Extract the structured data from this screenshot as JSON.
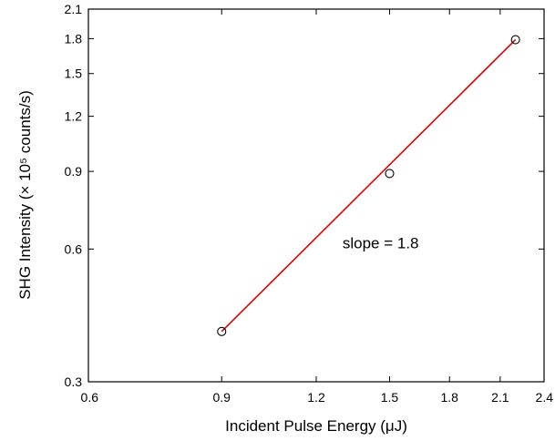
{
  "chart_data": {
    "type": "scatter",
    "xlabel": "Incident Pulse Energy (μJ)",
    "ylabel": "SHG Intensity (× 10⁵ counts/s)",
    "x_scale": "log",
    "y_scale": "log",
    "xlim": [
      0.6,
      2.4
    ],
    "ylim": [
      0.3,
      2.1
    ],
    "x_ticks": [
      "0.6",
      "0.9",
      "1.2",
      "1.5",
      "1.8",
      "2.1",
      "2.4"
    ],
    "y_ticks": [
      "0.3",
      "0.6",
      "0.9",
      "1.2",
      "1.5",
      "1.8",
      "2.1"
    ],
    "series": [
      {
        "points": [
          {
            "x": 0.9,
            "y": 0.39
          },
          {
            "x": 1.5,
            "y": 0.89
          },
          {
            "x": 2.2,
            "y": 1.79
          }
        ],
        "marker": "open-circle",
        "color": "#000000"
      }
    ],
    "fit_line": {
      "x": [
        0.9,
        2.2
      ],
      "y": [
        0.39,
        1.79
      ],
      "color": "#e00000"
    },
    "annotation": {
      "text": "slope = 1.8",
      "x": 1.3,
      "y": 0.62
    },
    "grid": false,
    "legend": "none"
  }
}
